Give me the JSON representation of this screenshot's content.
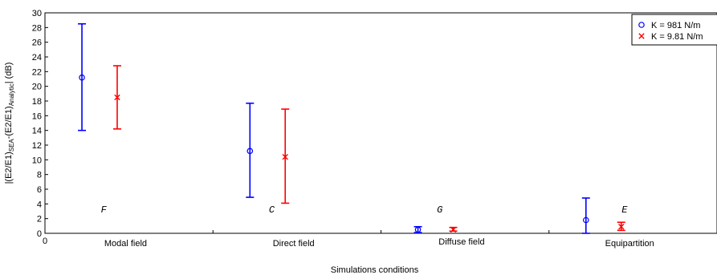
{
  "chart_data": {
    "type": "errorbar",
    "categories": [
      "Modal field",
      "Direct field",
      "Diffuse field",
      "Equipartition"
    ],
    "xlabel": "Simulations conditions",
    "ylabel_parts": [
      "|(E2/E1)",
      "SEA",
      "-(E2/E1)",
      "Analytic",
      "| (dB)"
    ],
    "ylim": [
      0,
      30
    ],
    "yticks": [
      0,
      2,
      4,
      6,
      8,
      10,
      12,
      14,
      16,
      18,
      20,
      22,
      24,
      26,
      28,
      30
    ],
    "x_origin_label": "0",
    "grid": true,
    "legend_position": "top-right",
    "series": [
      {
        "name": "K = 981 N/m",
        "color": "#0000ff",
        "marker": "circle",
        "points": [
          {
            "category": "Modal field",
            "value": 21.2,
            "low": 14.0,
            "high": 28.5
          },
          {
            "category": "Direct field",
            "value": 11.2,
            "low": 4.9,
            "high": 17.7
          },
          {
            "category": "Diffuse field",
            "value": 0.5,
            "low": 0.1,
            "high": 0.9
          },
          {
            "category": "Equipartition",
            "value": 1.8,
            "low": 0.0,
            "high": 4.8
          }
        ]
      },
      {
        "name": "K = 9.81 N/m",
        "color": "#ff0000",
        "marker": "x",
        "points": [
          {
            "category": "Modal field",
            "value": 18.5,
            "low": 14.2,
            "high": 22.8
          },
          {
            "category": "Direct field",
            "value": 10.4,
            "low": 4.1,
            "high": 16.9
          },
          {
            "category": "Diffuse field",
            "value": 0.5,
            "low": 0.3,
            "high": 0.8
          },
          {
            "category": "Equipartition",
            "value": 0.9,
            "low": 0.4,
            "high": 1.5
          }
        ]
      }
    ],
    "annotations": [
      {
        "text": "F",
        "category_index": 0,
        "y": 3.3
      },
      {
        "text": "C",
        "category_index": 1,
        "y": 3.3
      },
      {
        "text": "G",
        "category_index": 2,
        "y": 3.3
      },
      {
        "text": "E",
        "category_index": 3,
        "y": 3.3
      }
    ]
  }
}
